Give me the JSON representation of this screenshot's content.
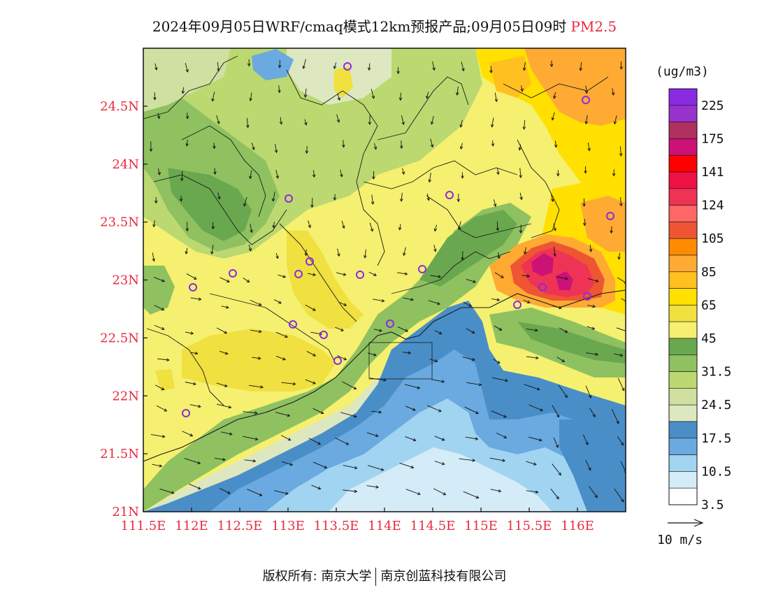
{
  "title": {
    "main": "2024年09月05日WRF/cmaq模式12km预报产品;09月05日09时",
    "pollutant": "PM2.5"
  },
  "map": {
    "lat_ticks": [
      "21N",
      "21.5N",
      "22N",
      "22.5N",
      "23N",
      "23.5N",
      "24N",
      "24.5N"
    ],
    "lon_ticks": [
      "111.5E",
      "112E",
      "112.5E",
      "113E",
      "113.5E",
      "114E",
      "114.5E",
      "115E",
      "115.5E",
      "116E"
    ],
    "lat_range": [
      21.0,
      25.0
    ],
    "lon_range": [
      111.5,
      116.5
    ]
  },
  "legend": {
    "unit": "(ug/m3)",
    "labels": [
      "225",
      "175",
      "141",
      "124",
      "105",
      "85",
      "65",
      "45",
      "31.5",
      "24.5",
      "17.5",
      "10.5",
      "3.5"
    ],
    "colors": [
      "#8a2be2",
      "#9932cc",
      "#b03060",
      "#cc1177",
      "#ff0000",
      "#ee1144",
      "#ee3355",
      "#ff6666",
      "#ee5533",
      "#ff8c00",
      "#ffaa33",
      "#ffc020",
      "#ffe000",
      "#f0e040",
      "#f5f070",
      "#6aa84f",
      "#8fc160",
      "#bcd870",
      "#cfe0a0",
      "#dde8c0",
      "#4a8ec8",
      "#6aaae0",
      "#a0d4f0",
      "#d4ecf8",
      "#ffffff"
    ]
  },
  "wind_reference": {
    "label": "10 m/s"
  },
  "footer": {
    "left": "版权所有: 南京大学",
    "right": "南京创蓝科技有限公司"
  }
}
